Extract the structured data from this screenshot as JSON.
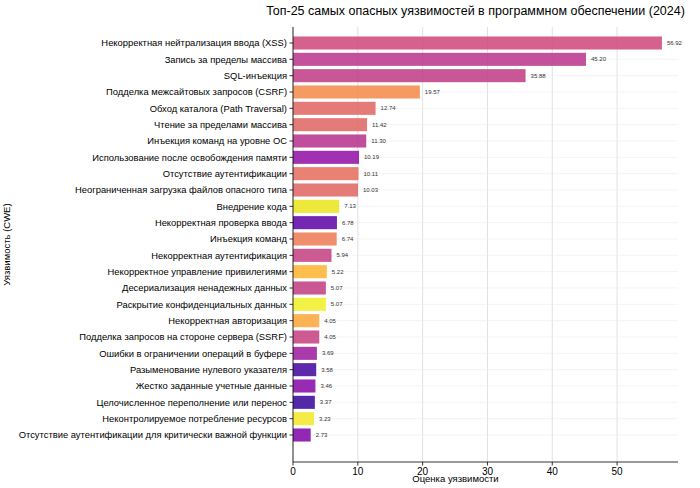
{
  "chart_data": {
    "type": "bar",
    "orientation": "horizontal",
    "title": "Топ-25 самых опасных уязвимостей в программном обеспечении (2024)",
    "x_label": "Оценка уязвимости",
    "y_label": "Уязвимость (CWE)",
    "categories": [
      "Некорректная нейтрализация ввода (XSS)",
      "Запись за пределы массива",
      "SQL-инъекция",
      "Подделка межсайтовых запросов (CSRF)",
      "Обход каталога (Path Traversal)",
      "Чтение за пределами массива",
      "Инъекция команд на уровне ОС",
      "Использование после освобождения памяти",
      "Отсутствие аутентификации",
      "Неограниченная загрузка файлов опасного типа",
      "Внедрение кода",
      "Некорректная проверка ввода",
      "Инъекция команд",
      "Некорректная аутентификация",
      "Некорректное управление привилегиями",
      "Десериализация ненадежных данных",
      "Раскрытие конфиденциальных данных",
      "Некорректная авторизация",
      "Подделка запросов на стороне сервера (SSRF)",
      "Ошибки в ограничении операций в буфере",
      "Разыменование нулевого указателя",
      "Жестко заданные учетные данные",
      "Целочисленное переполнение или перенос",
      "Неконтролируемое потребление ресурсов",
      "Отсутствие аутентификации для критически важной функции"
    ],
    "values": [
      56.92,
      45.2,
      35.88,
      19.57,
      12.74,
      11.42,
      11.3,
      10.19,
      10.11,
      10.03,
      7.13,
      6.78,
      6.74,
      5.94,
      5.22,
      5.07,
      5.07,
      4.05,
      4.05,
      3.69,
      3.58,
      3.46,
      3.37,
      3.23,
      2.73
    ],
    "value_labels": [
      "56.92",
      "45.20",
      "35.88",
      "19.57",
      "12.74",
      "11.42",
      "11.30",
      "10.19",
      "10.11",
      "10.03",
      "7.13",
      "6.78",
      "6.74",
      "5.94",
      "5.22",
      "5.07",
      "5.07",
      "4.05",
      "4.05",
      "3.69",
      "3.58",
      "3.46",
      "3.37",
      "3.23",
      "2.73"
    ],
    "colors": [
      "#cc4778",
      "#b83289",
      "#c03a83",
      "#f48849",
      "#e16462",
      "#e16462",
      "#b52f8c",
      "#8f0da4",
      "#e56b5d",
      "#e16462",
      "#eae51a",
      "#5c01a6",
      "#ed7953",
      "#c33d80",
      "#fdb32f",
      "#c13c80",
      "#eef024",
      "#fca636",
      "#c43e7f",
      "#9c179e",
      "#3f049c",
      "#8606a6",
      "#350498",
      "#f3e626",
      "#7e03a8"
    ],
    "xlim": [
      0,
      59.4
    ],
    "xticks": [
      0,
      10,
      20,
      30,
      40,
      50
    ],
    "grid": true,
    "data_labels": true
  }
}
